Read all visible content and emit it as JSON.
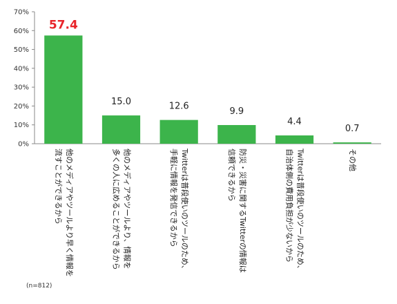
{
  "chart_data": {
    "type": "bar",
    "categories": [
      [
        "他のメディアやツールより早く情報を",
        "流すことができるから"
      ],
      [
        "他のメディアやツールより、情報を",
        "多くの人に広めることができるから"
      ],
      [
        "Twitterは普段使いのツールのため、",
        "手軽に情報を発信できるから"
      ],
      [
        "防災・災害に関するTwitterの情報は",
        "信頼できるから"
      ],
      [
        "Twitterは普段使いのツールのため、",
        "自治体側の費用負担が少ないから"
      ],
      [
        "その他"
      ]
    ],
    "values": [
      57.4,
      15.0,
      12.6,
      9.9,
      4.4,
      0.7
    ],
    "value_labels": [
      "57.4",
      "15.0",
      "12.6",
      "9.9",
      "4.4",
      "0.7"
    ],
    "highlight_index": 0,
    "ylim": [
      0,
      70
    ],
    "yticks": [
      "0%",
      "10%",
      "20%",
      "30%",
      "40%",
      "50%",
      "60%",
      "70%"
    ],
    "grid": false,
    "bar_color": "#3cb44b",
    "highlight_label_color": "#e8242a"
  },
  "note": "(n=812)"
}
